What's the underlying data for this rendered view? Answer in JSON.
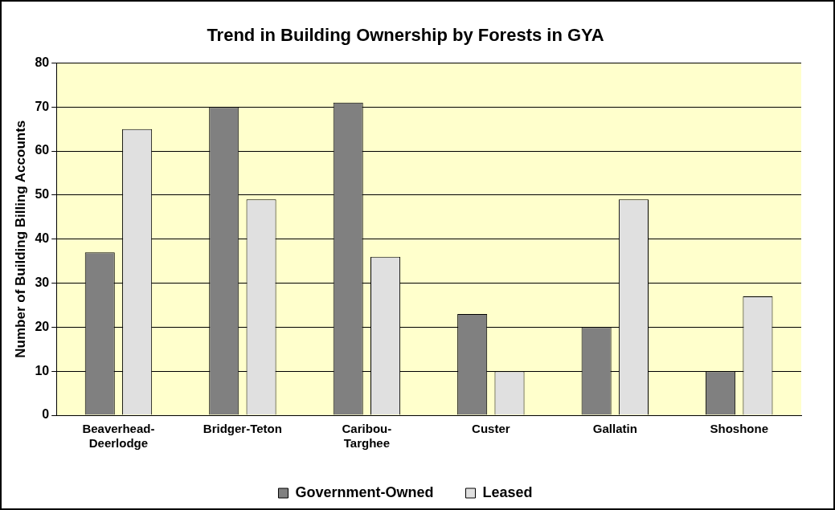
{
  "chart_data": {
    "type": "bar",
    "title": "Trend in Building Ownership by Forests in GYA",
    "ylabel": "Number of Building Billing Accounts",
    "categories": [
      "Beaverhead-Deerlodge",
      "Bridger-Teton",
      "Caribou-Targhee",
      "Custer",
      "Gallatin",
      "Shoshone"
    ],
    "series": [
      {
        "name": "Government-Owned",
        "color": "#808080",
        "values": [
          37,
          70,
          71,
          23,
          20,
          10
        ]
      },
      {
        "name": "Leased",
        "color": "#e0e0e0",
        "values": [
          65,
          49,
          36,
          10,
          49,
          27
        ]
      }
    ],
    "ylim": [
      0,
      80
    ],
    "yticks": [
      0,
      10,
      20,
      30,
      40,
      50,
      60,
      70,
      80
    ],
    "grid": "y",
    "legend": "bottom"
  }
}
